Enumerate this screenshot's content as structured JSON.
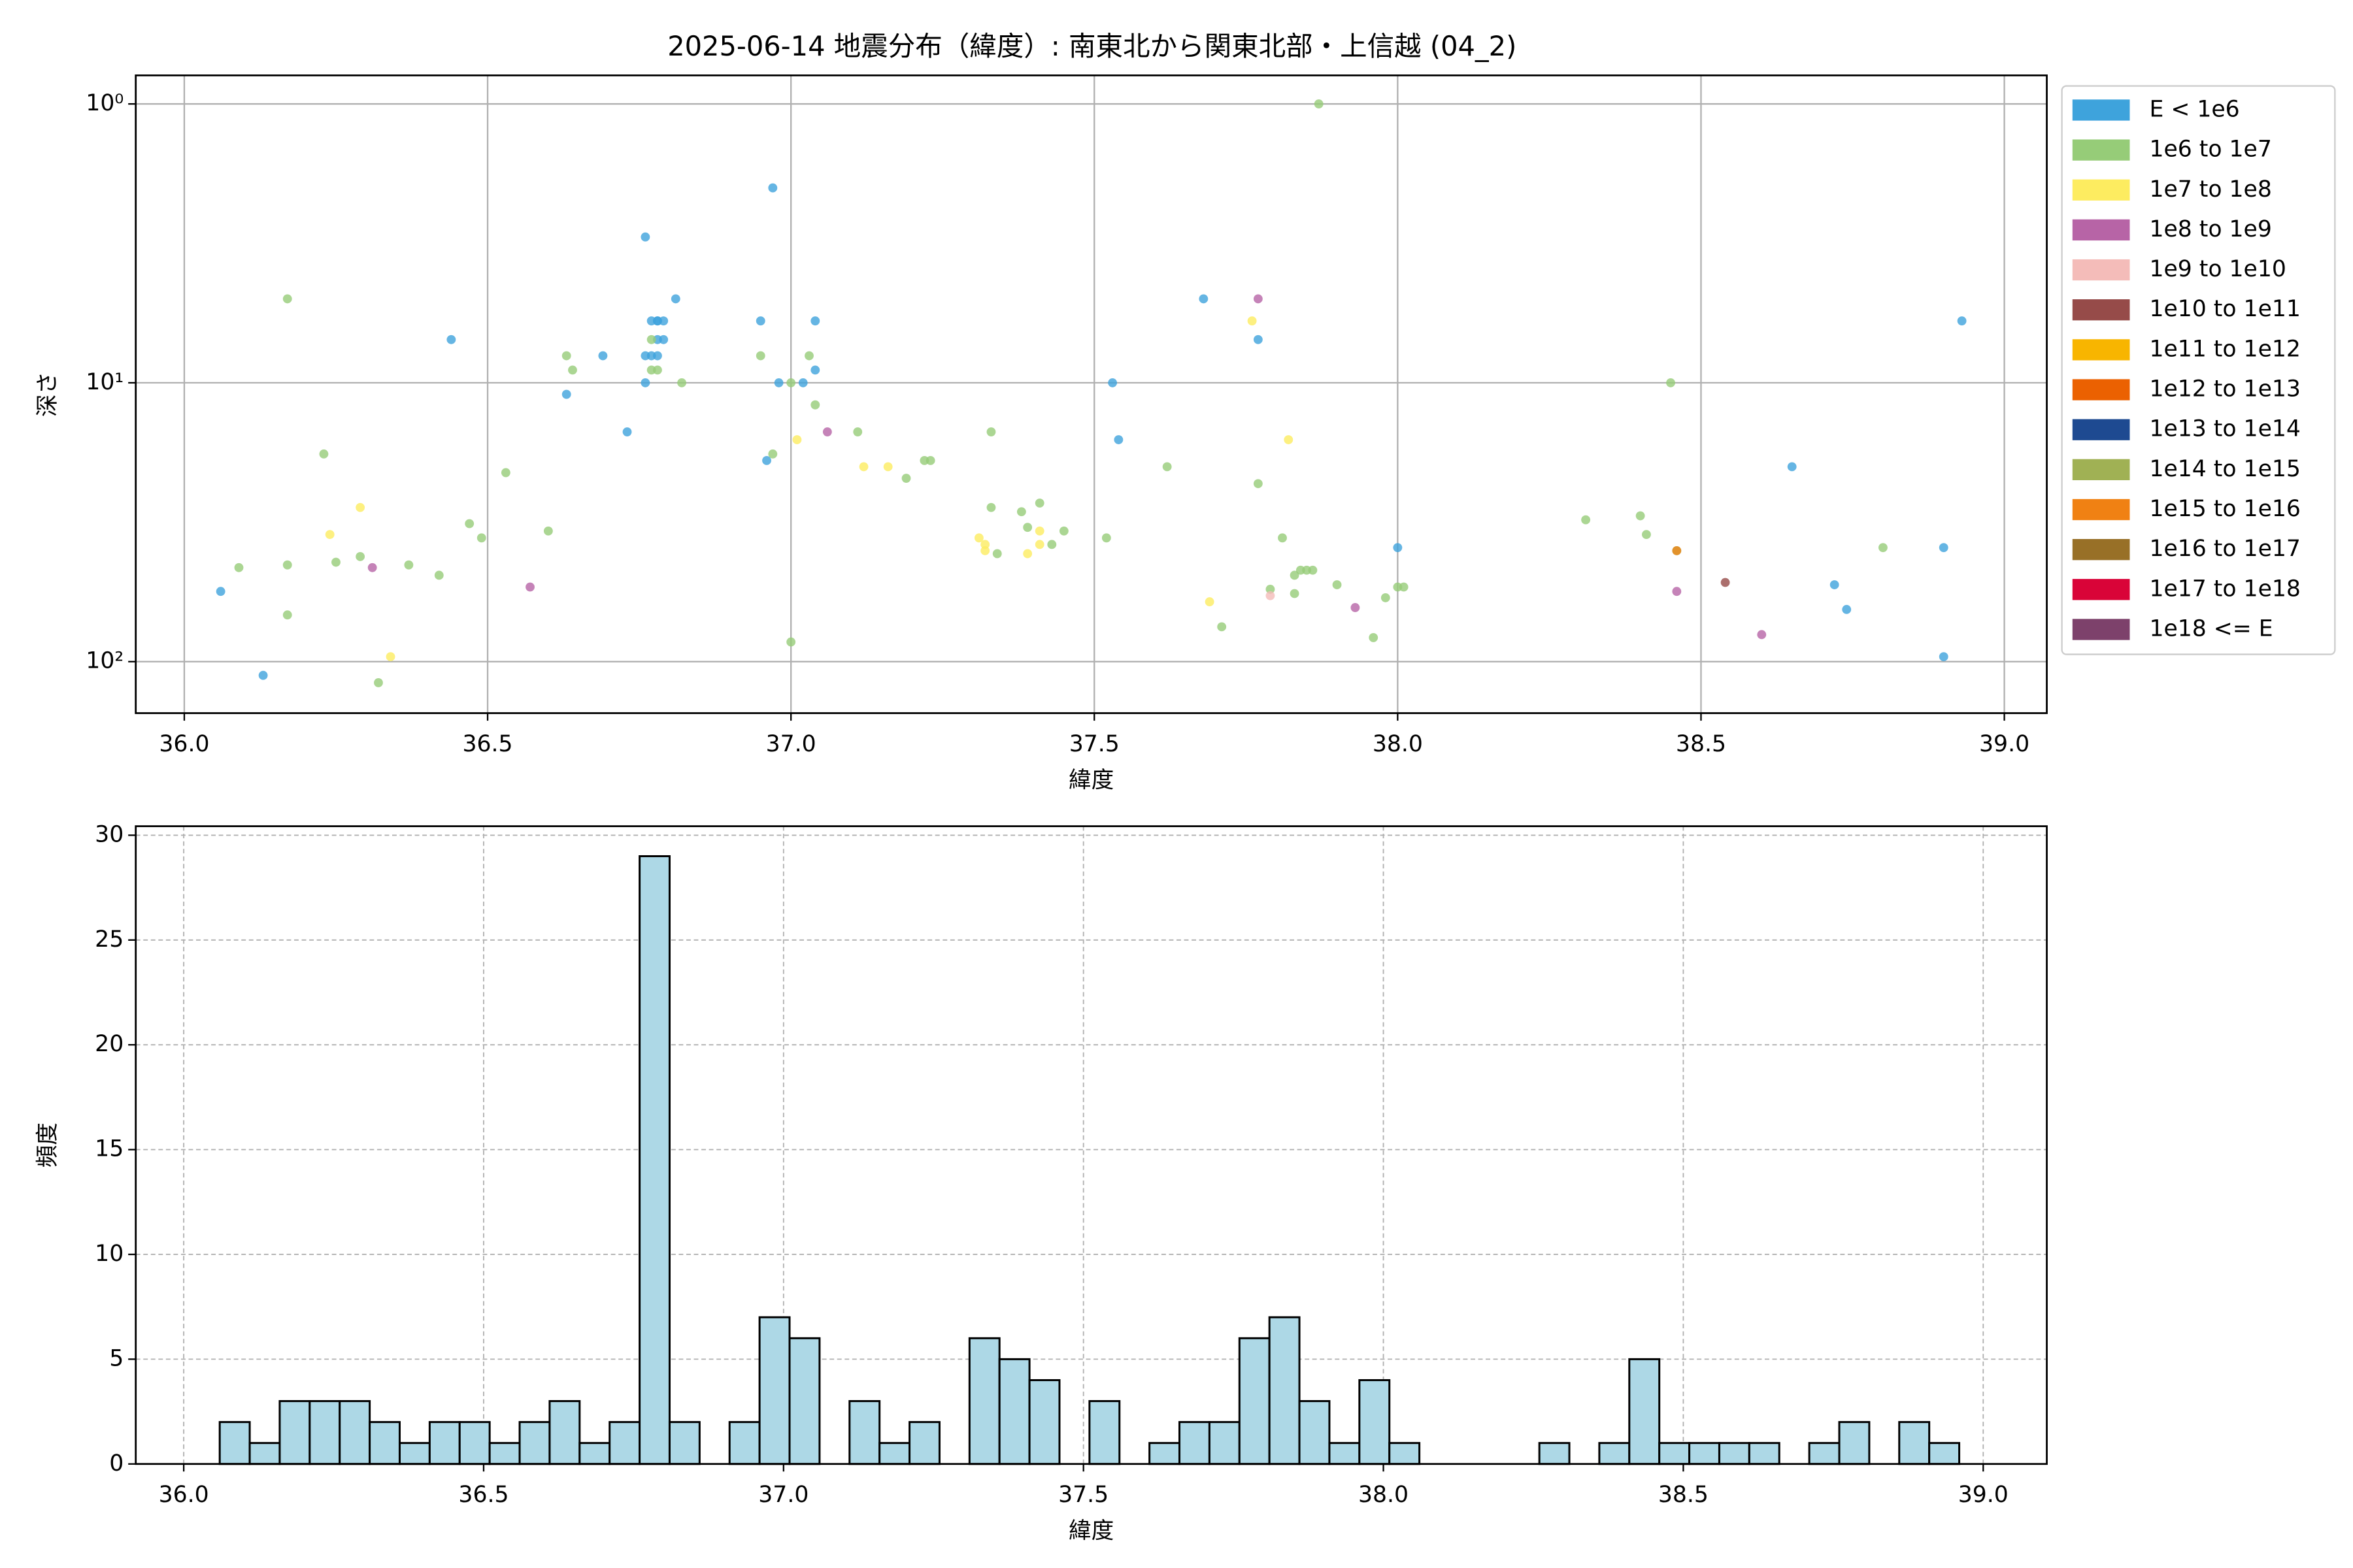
{
  "chart_data": [
    {
      "type": "scatter",
      "title": "2025-06-14 地震分布（緯度）: 南東北から関東北部・上信越 (04_2)",
      "x_label": "緯度",
      "y_label": "深さ",
      "yscale": "log",
      "y_inverted": true,
      "grid": true,
      "legend": "outside right",
      "xlim": [
        35.92,
        39.07
      ],
      "ylim": [
        0.79,
        153
      ],
      "xticks": [
        {
          "value": 36,
          "label": "36.0"
        },
        {
          "value": 36.5,
          "label": "36.5"
        },
        {
          "value": 37,
          "label": "37.0"
        },
        {
          "value": 37.5,
          "label": "37.5"
        },
        {
          "value": 38,
          "label": "38.0"
        },
        {
          "value": 38.5,
          "label": "38.5"
        },
        {
          "value": 39,
          "label": "39.0"
        }
      ],
      "yticks": [
        {
          "value": 1,
          "label": "10⁰"
        },
        {
          "value": 10,
          "label": "10¹"
        },
        {
          "value": 100,
          "label": "10²"
        }
      ],
      "series": [
        {
          "name": "E < 1e6",
          "color": "#3ea3dc",
          "x": [
            36.06,
            36.13,
            36.44,
            36.63,
            36.69,
            36.73,
            36.76,
            36.76,
            36.76,
            36.77,
            36.78,
            36.78,
            36.78,
            36.79,
            36.79,
            36.77,
            36.78,
            36.81,
            36.95,
            36.96,
            36.97,
            36.98,
            37.02,
            37.04,
            37.04,
            37.53,
            37.54,
            37.68,
            37.77,
            38.0,
            38.65,
            38.72,
            38.74,
            38.9,
            38.9,
            38.93
          ],
          "values": [
            56,
            112,
            7,
            11,
            8,
            15,
            8,
            3,
            10,
            6,
            6,
            6,
            7,
            6,
            7,
            8,
            8,
            5,
            6,
            19,
            2,
            10,
            10,
            6,
            9,
            10,
            16,
            5,
            7,
            39,
            20,
            53,
            65,
            39,
            96,
            6
          ]
        },
        {
          "name": "1e6 to 1e7",
          "color": "#96cc78",
          "x": [
            36.09,
            36.17,
            36.17,
            36.17,
            36.23,
            36.25,
            36.29,
            36.37,
            36.42,
            36.47,
            36.49,
            36.53,
            36.6,
            36.63,
            36.64,
            36.77,
            36.77,
            36.78,
            36.82,
            36.95,
            36.97,
            37.0,
            37.03,
            37.04,
            37.11,
            37.19,
            37.22,
            37.23,
            37.33,
            37.33,
            37.34,
            37.38,
            37.39,
            37.41,
            37.43,
            37.45,
            37.52,
            37.62,
            37.71,
            37.77,
            37.79,
            37.81,
            37.83,
            37.83,
            37.84,
            37.85,
            37.86,
            37.9,
            37.96,
            37.98,
            38.0,
            38.01,
            38.31,
            38.4,
            38.41,
            38.45,
            38.46,
            38.8,
            37.87,
            37.0,
            36.32
          ],
          "values": [
            46,
            5,
            45,
            68,
            18,
            44,
            42,
            45,
            49,
            32,
            36,
            21,
            34,
            8,
            9,
            9,
            7,
            9,
            10,
            8,
            18,
            10,
            8,
            12,
            15,
            22,
            19,
            19,
            15,
            28,
            41,
            29,
            33,
            27,
            38,
            34,
            36,
            20,
            75,
            23,
            55,
            36,
            49,
            57,
            47,
            47,
            47,
            53,
            82,
            59,
            54,
            54,
            31,
            30,
            35,
            10,
            40,
            39,
            1,
            85,
            119
          ]
        },
        {
          "name": "1e7 to 1e8",
          "color": "#fdec60",
          "x": [
            36.24,
            36.29,
            36.34,
            37.01,
            37.12,
            37.16,
            37.31,
            37.32,
            37.32,
            37.39,
            37.41,
            37.41,
            37.69,
            37.76,
            37.82
          ],
          "values": [
            35,
            28,
            96,
            16,
            20,
            20,
            36,
            38,
            40,
            41,
            38,
            34,
            61,
            6,
            16
          ]
        },
        {
          "name": "1e8 to 1e9",
          "color": "#b764a6",
          "x": [
            36.31,
            36.57,
            37.06,
            37.77,
            37.93,
            38.46,
            38.6
          ],
          "values": [
            46,
            54,
            15,
            5,
            64,
            56,
            80
          ]
        },
        {
          "name": "1e9 to 1e10",
          "color": "#f4bcb9",
          "x": [
            37.79
          ],
          "values": [
            58
          ]
        },
        {
          "name": "1e10 to 1e11",
          "color": "#964b49",
          "x": [
            38.54
          ],
          "values": [
            52
          ]
        },
        {
          "name": "1e11 to 1e12",
          "color": "#f8b500",
          "x": [],
          "values": []
        },
        {
          "name": "1e12 to 1e13",
          "color": "#eb6101",
          "x": [],
          "values": []
        },
        {
          "name": "1e13 to 1e14",
          "color": "#1e4a91",
          "x": [],
          "values": []
        },
        {
          "name": "1e14 to 1e15",
          "color": "#a0b154",
          "x": [],
          "values": []
        },
        {
          "name": "1e15 to 1e16",
          "color": "#f08113",
          "x": [
            38.46
          ],
          "values": [
            40
          ]
        },
        {
          "name": "1e16 to 1e17",
          "color": "#987027",
          "x": [],
          "values": []
        },
        {
          "name": "1e17 to 1e18",
          "color": "#d90438",
          "x": [],
          "values": []
        },
        {
          "name": "1e18 <= E",
          "color": "#7d416b",
          "x": [],
          "values": []
        }
      ]
    },
    {
      "type": "histogram",
      "x_label": "緯度",
      "y_label": "頻度",
      "color": "#add8e6",
      "edgecolor": "#000000",
      "grid": true,
      "grid_style": "dashed",
      "xlim": [
        35.92,
        39.106
      ],
      "ylim": [
        0,
        30.43
      ],
      "xticks": [
        {
          "value": 36,
          "label": "36.0"
        },
        {
          "value": 36.5,
          "label": "36.5"
        },
        {
          "value": 37,
          "label": "37.0"
        },
        {
          "value": 37.5,
          "label": "37.5"
        },
        {
          "value": 38,
          "label": "38.0"
        },
        {
          "value": 38.5,
          "label": "38.5"
        },
        {
          "value": 39,
          "label": "39.0"
        }
      ],
      "yticks": [
        0,
        5,
        10,
        15,
        20,
        25,
        30
      ],
      "bins": [
        36.06,
        36.11,
        36.16,
        36.21,
        36.26,
        36.31,
        36.36,
        36.41,
        36.46,
        36.51,
        36.56,
        36.61,
        36.66,
        36.71,
        36.76,
        36.81,
        36.86,
        36.91,
        36.96,
        37.01,
        37.06,
        37.11,
        37.16,
        37.21,
        37.26,
        37.31,
        37.36,
        37.41,
        37.46,
        37.51,
        37.56,
        37.61,
        37.66,
        37.71,
        37.76,
        37.81,
        37.86,
        37.91,
        37.96,
        38.01,
        38.06,
        38.11,
        38.16,
        38.21,
        38.26,
        38.31,
        38.36,
        38.41,
        38.46,
        38.51,
        38.56,
        38.61,
        38.66,
        38.71,
        38.76,
        38.81,
        38.86,
        38.91,
        38.96
      ],
      "values": [
        2,
        1,
        3,
        3,
        3,
        2,
        1,
        2,
        2,
        1,
        2,
        3,
        1,
        2,
        29,
        2,
        0,
        2,
        7,
        6,
        0,
        3,
        1,
        2,
        0,
        6,
        5,
        4,
        0,
        3,
        0,
        1,
        2,
        2,
        6,
        7,
        3,
        1,
        4,
        1,
        0,
        0,
        0,
        0,
        1,
        0,
        1,
        5,
        1,
        1,
        1,
        1,
        0,
        1,
        2,
        0,
        2,
        1
      ]
    }
  ]
}
